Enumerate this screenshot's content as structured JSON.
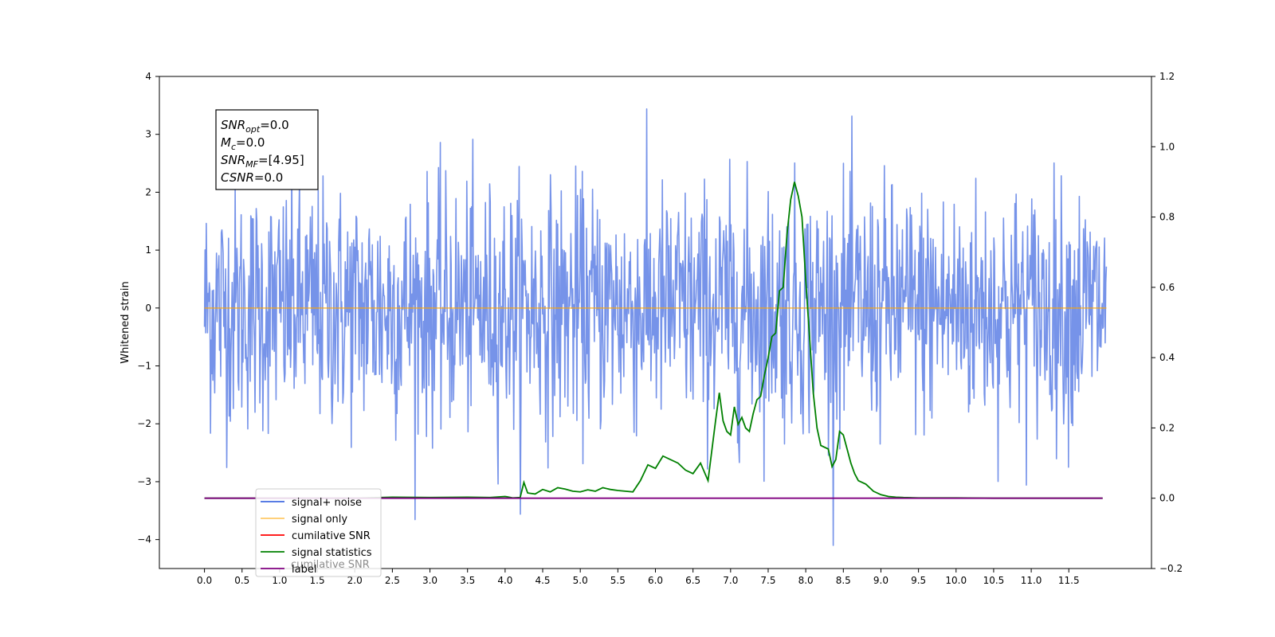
{
  "chart_data": {
    "type": "line",
    "title": "",
    "xlabel": "",
    "ylabel": "Whitened strain",
    "xlim": [
      -0.6,
      12.6
    ],
    "ylim": [
      -4.5,
      4.0
    ],
    "y2lim": [
      -0.2,
      1.2
    ],
    "x_ticks": [
      "0.0",
      "0.5",
      "1.0",
      "1.5",
      "2.0",
      "2.5",
      "3.0",
      "3.5",
      "4.0",
      "4.5",
      "5.0",
      "5.5",
      "6.0",
      "6.5",
      "7.0",
      "7.5",
      "8.0",
      "8.5",
      "9.0",
      "9.5",
      "10.0",
      "10.5",
      "11.0",
      "11.5"
    ],
    "y_ticks": [
      "4",
      "3",
      "2",
      "1",
      "0",
      "−1",
      "−2",
      "−3",
      "−4"
    ],
    "y2_ticks": [
      "1.2",
      "1.0",
      "0.8",
      "0.6",
      "0.4",
      "0.2",
      "0.0",
      "−0.2"
    ],
    "legend_position": "lower-left",
    "legend": [
      {
        "label": "signal+ noise",
        "color": "#4169e1"
      },
      {
        "label": "signal only",
        "color": "#ffa500"
      },
      {
        "label": "cumilative SNR",
        "color": "#ff0000"
      },
      {
        "label": "signal statistics",
        "color": "#008000"
      },
      {
        "label": "label",
        "color": "#800080"
      }
    ],
    "hidden_legend_text": "cumilative SNR",
    "annotation": {
      "lines": [
        {
          "sym": "SNR",
          "sub": "opt",
          "rest": "=0.0"
        },
        {
          "sym": "M",
          "sub": "c",
          "rest": "=0.0"
        },
        {
          "sym": "SNR",
          "sub": "MF",
          "rest": "=[4.95]"
        },
        {
          "sym": "CSNR",
          "sub": "",
          "rest": "=0.0"
        }
      ]
    },
    "series": [
      {
        "name": "signal+ noise",
        "axis": "left",
        "color": "#4169e1",
        "x_range": [
          0.0,
          12.0
        ],
        "n_points": 1500,
        "envelope": {
          "upper": 2.4,
          "lower": -2.4,
          "max_peak": 3.6,
          "min_peak": -4.1
        }
      },
      {
        "name": "signal only",
        "axis": "left",
        "color": "#ffa500",
        "x": [
          0.0,
          12.0
        ],
        "y": [
          0.0,
          0.0
        ]
      },
      {
        "name": "signal statistics",
        "axis": "right",
        "color": "#008000",
        "x": [
          0.0,
          0.5,
          1.0,
          1.5,
          2.0,
          2.5,
          3.0,
          3.5,
          3.8,
          4.0,
          4.1,
          4.2,
          4.25,
          4.3,
          4.4,
          4.5,
          4.6,
          4.7,
          4.8,
          4.9,
          5.0,
          5.1,
          5.2,
          5.3,
          5.4,
          5.5,
          5.6,
          5.7,
          5.8,
          5.9,
          6.0,
          6.1,
          6.2,
          6.3,
          6.4,
          6.5,
          6.6,
          6.7,
          6.8,
          6.85,
          6.9,
          6.95,
          7.0,
          7.05,
          7.1,
          7.15,
          7.2,
          7.25,
          7.3,
          7.35,
          7.4,
          7.45,
          7.5,
          7.55,
          7.6,
          7.65,
          7.7,
          7.75,
          7.8,
          7.85,
          7.9,
          7.95,
          8.0,
          8.05,
          8.1,
          8.15,
          8.2,
          8.3,
          8.35,
          8.4,
          8.45,
          8.5,
          8.55,
          8.6,
          8.65,
          8.7,
          8.8,
          8.9,
          9.0,
          9.1,
          9.2,
          9.3,
          9.5,
          10.0,
          10.5,
          11.0,
          11.5,
          11.95
        ],
        "y": [
          0.0,
          0.0,
          0.0,
          0.0,
          0.0,
          0.003,
          0.002,
          0.003,
          0.002,
          0.005,
          0.001,
          0.002,
          0.045,
          0.015,
          0.012,
          0.025,
          0.018,
          0.03,
          0.026,
          0.02,
          0.018,
          0.024,
          0.02,
          0.03,
          0.025,
          0.022,
          0.02,
          0.018,
          0.05,
          0.095,
          0.085,
          0.12,
          0.11,
          0.1,
          0.08,
          0.07,
          0.1,
          0.05,
          0.22,
          0.3,
          0.22,
          0.19,
          0.18,
          0.26,
          0.21,
          0.23,
          0.2,
          0.19,
          0.24,
          0.28,
          0.29,
          0.35,
          0.4,
          0.46,
          0.47,
          0.59,
          0.6,
          0.75,
          0.85,
          0.9,
          0.86,
          0.8,
          0.62,
          0.46,
          0.3,
          0.2,
          0.15,
          0.14,
          0.09,
          0.11,
          0.19,
          0.18,
          0.14,
          0.1,
          0.07,
          0.05,
          0.04,
          0.02,
          0.01,
          0.005,
          0.003,
          0.002,
          0.001,
          0.001,
          0.0,
          0.0,
          0.0,
          0.0
        ]
      },
      {
        "name": "label",
        "axis": "right",
        "color": "#800080",
        "x": [
          0.0,
          11.95
        ],
        "y": [
          0.0,
          0.0
        ]
      }
    ]
  }
}
